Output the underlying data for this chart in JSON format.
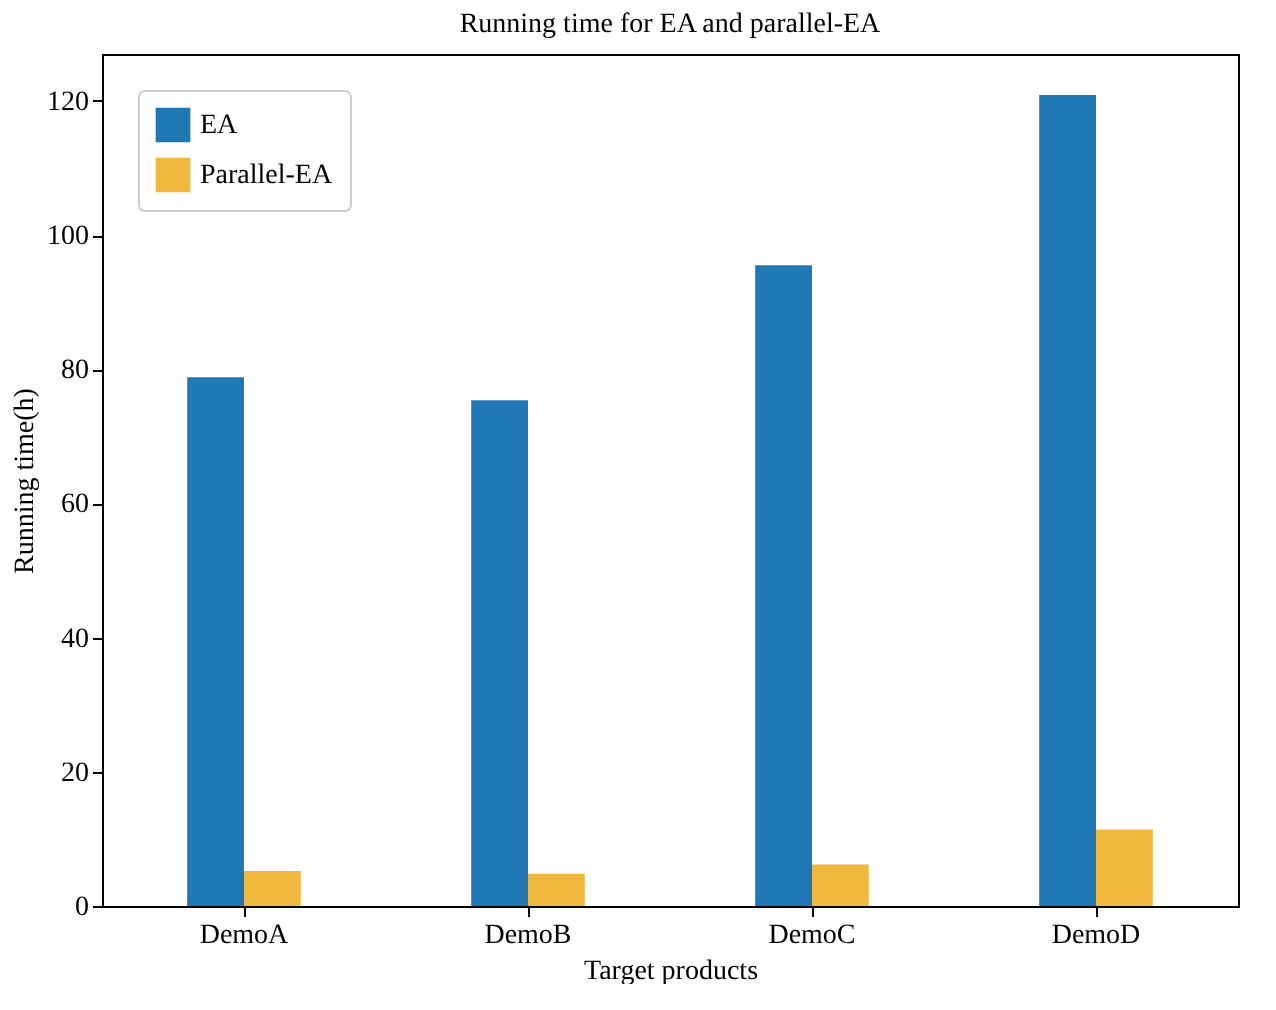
{
  "chart_data": {
    "type": "bar",
    "title": "Running time for EA and parallel-EA",
    "xlabel": "Target products",
    "ylabel": "Running time(h)",
    "categories": [
      "DemoA",
      "DemoB",
      "DemoC",
      "DemoD"
    ],
    "series": [
      {
        "name": "EA",
        "color": "#1f77b4",
        "values": [
          78.8,
          75.4,
          95.5,
          120.9
        ]
      },
      {
        "name": "Parallel-EA",
        "color": "#f0b83e",
        "values": [
          5.2,
          4.8,
          6.2,
          11.4
        ]
      }
    ],
    "ylim": [
      0,
      127
    ],
    "yticks": [
      0,
      20,
      40,
      60,
      80,
      100,
      120
    ],
    "legend": "top left"
  }
}
